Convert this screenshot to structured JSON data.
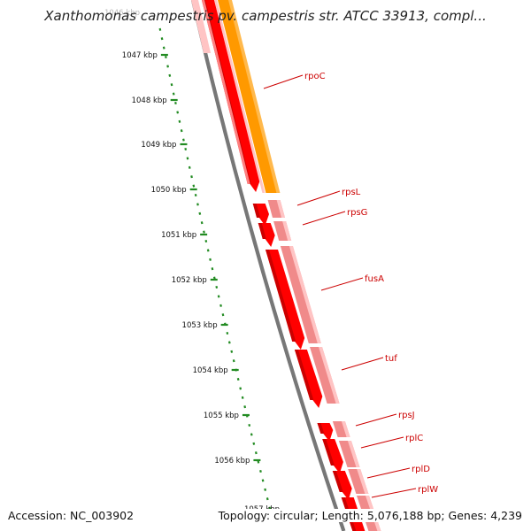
{
  "title": "Xanthomonas campestris pv. campestris str. ATCC 33913, compl...",
  "accession": "Accession: NC_003902",
  "summary": "Topology: circular; Length: 5,076,188 bp; Genes: 4,239",
  "ruler": {
    "top_label": "1046 kbp",
    "labels": [
      "1047 kbp",
      "1048 kbp",
      "1049 kbp",
      "1050 kbp",
      "1051 kbp",
      "1052 kbp",
      "1053 kbp",
      "1054 kbp",
      "1055 kbp",
      "1056 kbp"
    ],
    "bottom_label": "1057 kbp"
  },
  "genes": [
    {
      "name": "rpoC"
    },
    {
      "name": "rpsL"
    },
    {
      "name": "rpsG"
    },
    {
      "name": "fusA"
    },
    {
      "name": "tuf"
    },
    {
      "name": "rpsJ"
    },
    {
      "name": "rplC"
    },
    {
      "name": "rplD"
    },
    {
      "name": "rplW"
    }
  ],
  "colors": {
    "cds": "#ff0000",
    "cds_shade": "#cc0000",
    "gene_pink": "#f08a8a",
    "gene_light": "#ffc4c4",
    "orange": "#ff9900",
    "backbone": "#777777",
    "ticks": "#228b22",
    "label": "#cc0000"
  }
}
